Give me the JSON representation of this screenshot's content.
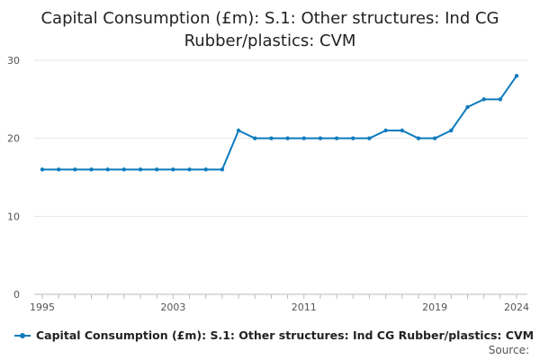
{
  "chart_data": {
    "type": "line",
    "title_lines": [
      "Capital Consumption (£m): S.1: Other structures: Ind CG",
      "Rubber/plastics: CVM"
    ],
    "x": [
      1995,
      1996,
      1997,
      1998,
      1999,
      2000,
      2001,
      2002,
      2003,
      2004,
      2005,
      2006,
      2007,
      2008,
      2009,
      2010,
      2011,
      2012,
      2013,
      2014,
      2015,
      2016,
      2017,
      2018,
      2019,
      2020,
      2021,
      2022,
      2023,
      2024
    ],
    "series": [
      {
        "name": "Capital Consumption (£m): S.1: Other structures: Ind CG Rubber/plastics: CVM",
        "values": [
          16,
          16,
          16,
          16,
          16,
          16,
          16,
          16,
          16,
          16,
          16,
          16,
          21,
          20,
          20,
          20,
          20,
          20,
          20,
          20,
          20,
          21,
          21,
          20,
          20,
          21,
          24,
          25,
          25,
          28
        ],
        "color": "#0f7bbd"
      }
    ],
    "x_ticks": [
      "1995",
      "2003",
      "2011",
      "2019",
      "2024"
    ],
    "y_ticks": [
      "0",
      "10",
      "20",
      "30"
    ],
    "xlim": [
      1995,
      2024
    ],
    "ylim": [
      0,
      30
    ],
    "grid": true,
    "legend_position": "bottom"
  },
  "source_label": "Source:"
}
